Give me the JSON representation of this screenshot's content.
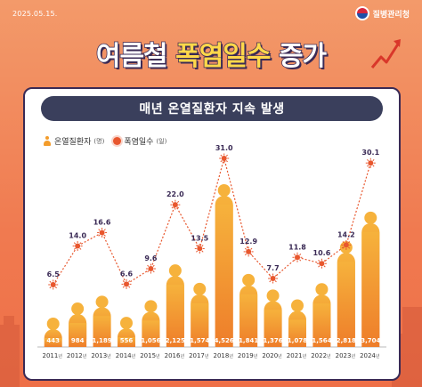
{
  "header": {
    "date": "2025.05.15.",
    "agency": "질병관리청"
  },
  "headline": {
    "part1": "여름철 ",
    "part2": "폭염일수",
    "part3": " 증가"
  },
  "card": {
    "subtitle": "매년 온열질환자 지속 발생"
  },
  "legend": {
    "patients_label": "온열질환자",
    "patients_unit": "(명)",
    "heatdays_label": "폭염일수",
    "heatdays_unit": "(일)"
  },
  "colors": {
    "bar_top": "#f6b23c",
    "bar_bottom": "#ee7d2a",
    "heat_marker": "#e8572e",
    "heat_line": "#e8572e",
    "frame": "#3a2a55"
  },
  "chart_data": {
    "type": "bar",
    "categories": [
      "2011",
      "2012",
      "2013",
      "2014",
      "2015",
      "2016",
      "2017",
      "2018",
      "2019",
      "2020",
      "2021",
      "2022",
      "2023",
      "2024"
    ],
    "category_unit": "년",
    "series": [
      {
        "name": "온열질환자",
        "unit": "명",
        "type": "bar",
        "values": [
          443,
          984,
          1189,
          556,
          1056,
          2125,
          1574,
          4526,
          1841,
          1376,
          1078,
          1564,
          2818,
          3704
        ],
        "labels": [
          "443",
          "984",
          "1,189",
          "556",
          "1,056",
          "2,125",
          "1,574",
          "4,526",
          "1,841",
          "1,376",
          "1,078",
          "1,564",
          "2,818",
          "3,704"
        ]
      },
      {
        "name": "폭염일수",
        "unit": "일",
        "type": "line",
        "values": [
          6.5,
          14.0,
          16.6,
          6.6,
          9.6,
          22.0,
          13.5,
          31.0,
          12.9,
          7.7,
          11.8,
          10.6,
          14.2,
          30.1
        ],
        "labels": [
          "6.5",
          "14.0",
          "16.6",
          "6.6",
          "9.6",
          "22.0",
          "13.5",
          "31.0",
          "12.9",
          "7.7",
          "11.8",
          "10.6",
          "14.2",
          "30.1"
        ]
      }
    ]
  }
}
